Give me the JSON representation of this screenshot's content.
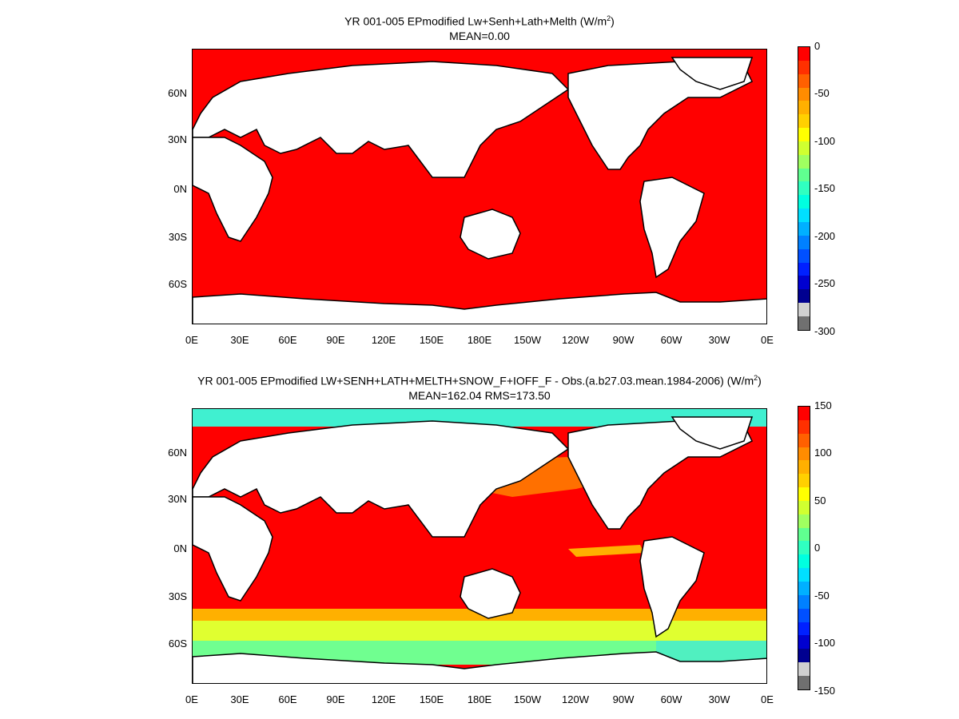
{
  "panels": [
    {
      "title_main": "YR 001-005 EPmodified Lw+Senh+Lath+Melth (W/m",
      "title_sup": "2",
      "title_end": ")",
      "subtitle": "MEAN=0.00",
      "lat_labels": [
        "60N",
        "30N",
        "0N",
        "30S",
        "60S"
      ],
      "lon_labels": [
        "0E",
        "30E",
        "60E",
        "90E",
        "120E",
        "150E",
        "180E",
        "150W",
        "120W",
        "90W",
        "60W",
        "30W",
        "0E"
      ],
      "colorbar_labels": [
        "0",
        "-50",
        "-100",
        "-150",
        "-200",
        "-250",
        "-300"
      ],
      "ocean_color": "#ff0000"
    },
    {
      "title_main": "YR 001-005 EPmodified LW+SENH+LATH+MELTH+SNOW_F+IOFF_F - Obs.(a.b27.03.mean.1984-2006) (W/m",
      "title_sup": "2",
      "title_end": ")",
      "subtitle": "MEAN=162.04 RMS=173.50",
      "lat_labels": [
        "60N",
        "30N",
        "0N",
        "30S",
        "60S"
      ],
      "lon_labels": [
        "0E",
        "30E",
        "60E",
        "90E",
        "120E",
        "150E",
        "180E",
        "150W",
        "120W",
        "90W",
        "60W",
        "30W",
        "0E"
      ],
      "colorbar_labels": [
        "150",
        "100",
        "50",
        "0",
        "-50",
        "-100",
        "-150"
      ],
      "ocean_color": "#ff0000"
    }
  ],
  "colorbar_colors": [
    "#ff0000",
    "#ff3000",
    "#ff6000",
    "#ff8c00",
    "#ffb000",
    "#ffd000",
    "#ffff00",
    "#d0ff30",
    "#a0ff60",
    "#60ff90",
    "#30ffc0",
    "#00ffe0",
    "#00e0ff",
    "#00b0ff",
    "#0080ff",
    "#0050ff",
    "#0020ff",
    "#0000d0",
    "#000090",
    "#d0d0d0",
    "#707070"
  ]
}
